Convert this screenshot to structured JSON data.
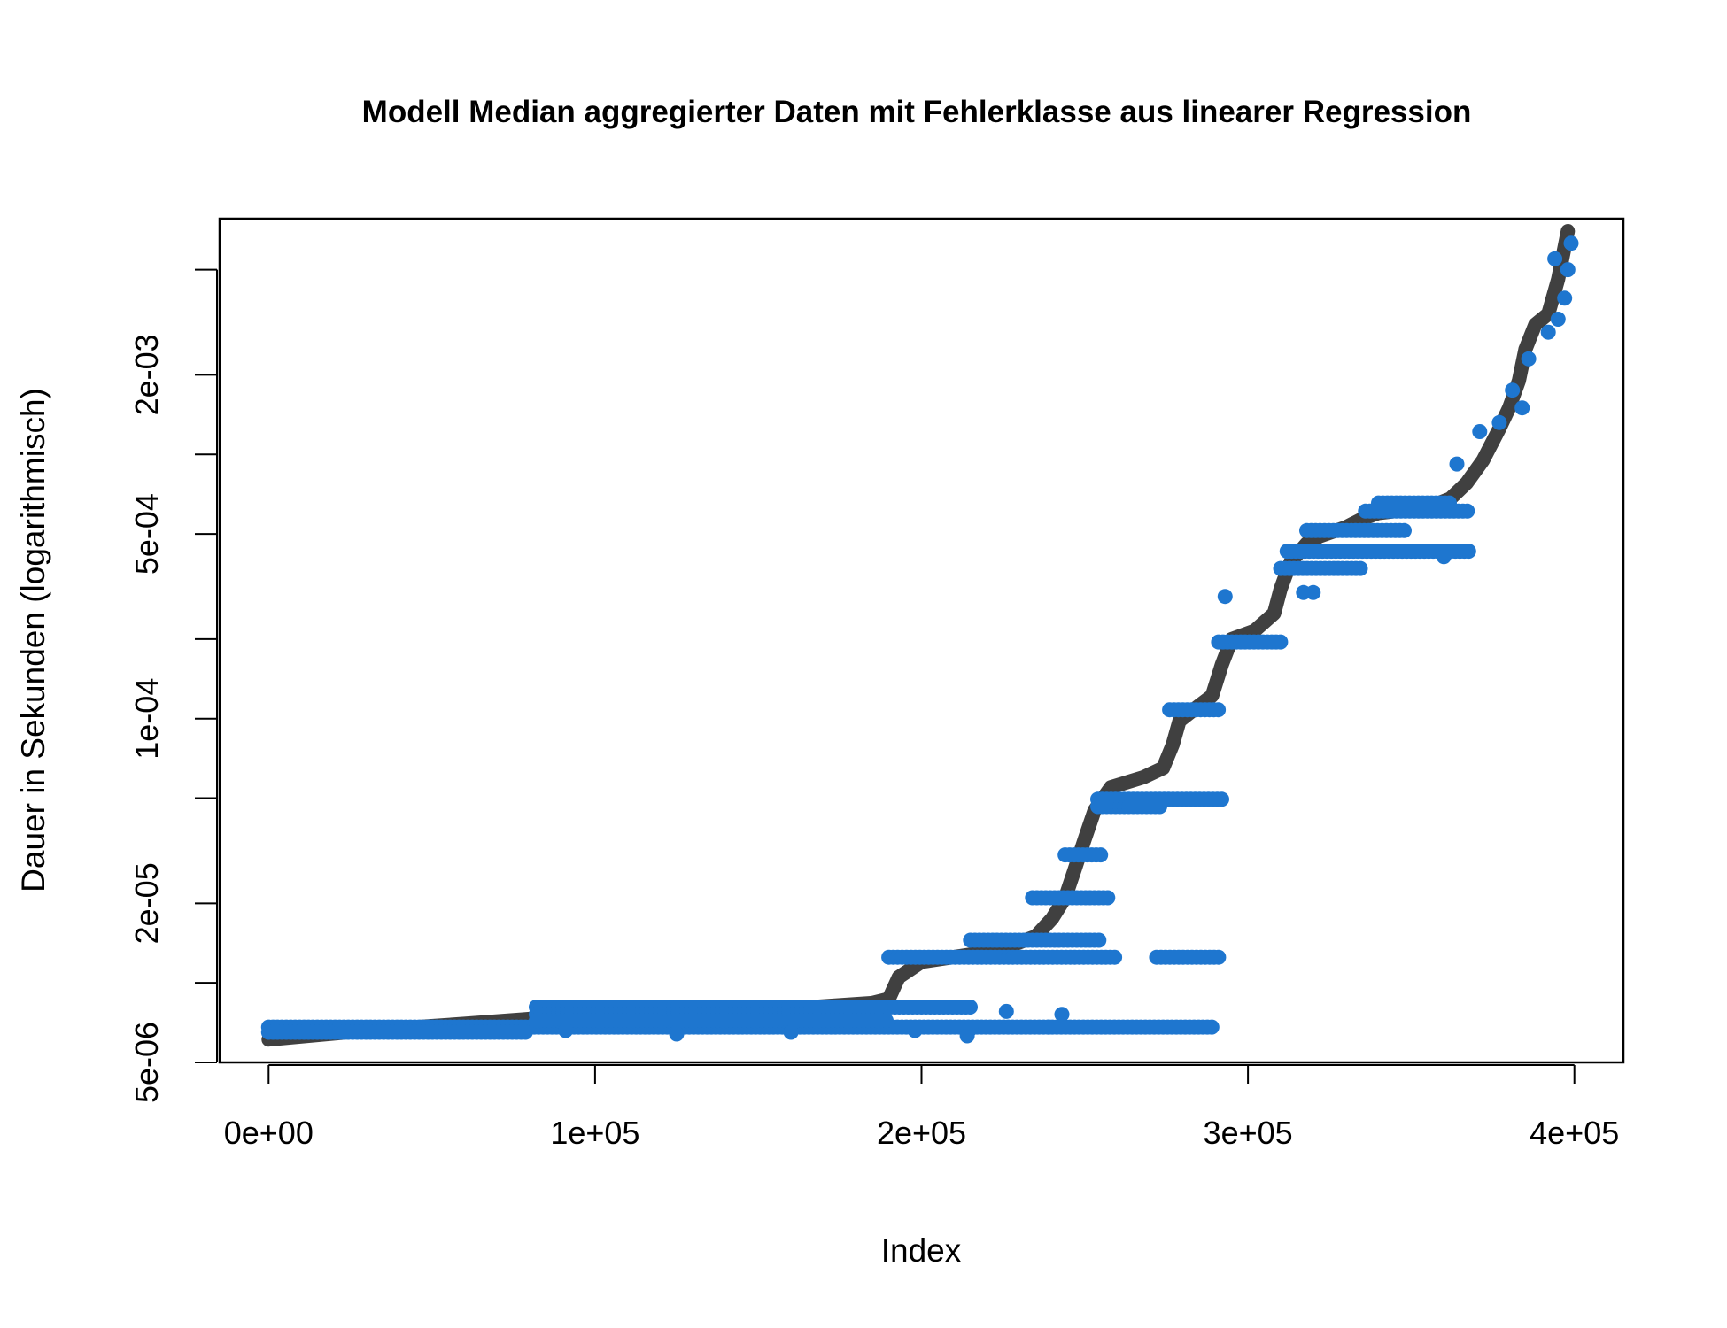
{
  "chart_data": {
    "type": "scatter",
    "title": "Modell  Median aggregierter Daten mit Fehlerklasse aus linearer Regression",
    "xlabel": "Index",
    "ylabel": "Dauer in Sekunden (logarithmisch)",
    "xlim": [
      -15000,
      415000
    ],
    "ylim": [
      5e-06,
      0.0078
    ],
    "y_scale": "log",
    "grid": false,
    "legend": "none",
    "x_ticks": [
      0,
      100000,
      200000,
      300000,
      400000
    ],
    "x_tick_labels": [
      "0e+00",
      "1e+05",
      "2e+05",
      "3e+05",
      "4e+05"
    ],
    "y_ticks": [
      5e-06,
      1e-05,
      2e-05,
      5e-05,
      0.0001,
      0.0002,
      0.0005,
      0.001,
      0.002,
      0.005
    ],
    "y_tick_labels": [
      "5e-06",
      "",
      "2e-05",
      "",
      "1e-04",
      "",
      "5e-04",
      "",
      "2e-03",
      ""
    ],
    "colors": {
      "series_1": "#404040",
      "series_2": "#1e76cf"
    },
    "series": [
      {
        "style": "thick-line",
        "color": "#404040",
        "points": [
          [
            0,
            6.1e-06
          ],
          [
            30000,
            6.6e-06
          ],
          [
            60000,
            7e-06
          ],
          [
            80000,
            7.3e-06
          ],
          [
            120000,
            7.7e-06
          ],
          [
            160000,
            8e-06
          ],
          [
            185000,
            8.4e-06
          ],
          [
            190000,
            8.7e-06
          ],
          [
            193000,
            1.05e-05
          ],
          [
            200000,
            1.2e-05
          ],
          [
            215000,
            1.28e-05
          ],
          [
            225000,
            1.35e-05
          ],
          [
            235000,
            1.5e-05
          ],
          [
            240000,
            1.75e-05
          ],
          [
            244000,
            2.1e-05
          ],
          [
            247000,
            2.7e-05
          ],
          [
            250000,
            3.5e-05
          ],
          [
            253000,
            4.5e-05
          ],
          [
            258000,
            5.5e-05
          ],
          [
            268000,
            6e-05
          ],
          [
            274000,
            6.5e-05
          ],
          [
            277000,
            8e-05
          ],
          [
            279000,
            9.8e-05
          ],
          [
            285000,
            0.000112
          ],
          [
            289000,
            0.000122
          ],
          [
            292000,
            0.00016
          ],
          [
            295000,
            0.0002
          ],
          [
            302000,
            0.000215
          ],
          [
            308000,
            0.00025
          ],
          [
            310000,
            0.00031
          ],
          [
            313000,
            0.00039
          ],
          [
            318000,
            0.00046
          ],
          [
            322000,
            0.00049
          ],
          [
            330000,
            0.00053
          ],
          [
            335000,
            0.00057
          ],
          [
            340000,
            0.0006
          ],
          [
            355000,
            0.00063
          ],
          [
            362000,
            0.00068
          ],
          [
            367000,
            0.00078
          ],
          [
            372000,
            0.00095
          ],
          [
            377000,
            0.00125
          ],
          [
            380000,
            0.0015
          ],
          [
            383000,
            0.0019
          ],
          [
            385000,
            0.0025
          ],
          [
            388000,
            0.0031
          ],
          [
            392000,
            0.0034
          ],
          [
            395000,
            0.0046
          ],
          [
            398000,
            0.007
          ]
        ]
      },
      {
        "style": "points",
        "color": "#1e76cf",
        "bands": [
          [
            0,
            290000,
            6.8e-06
          ],
          [
            0,
            80000,
            6.5e-06
          ],
          [
            82000,
            215000,
            8.1e-06
          ],
          [
            82000,
            165000,
            7.6e-06
          ],
          [
            82000,
            190000,
            7.2e-06
          ],
          [
            190000,
            260000,
            1.25e-05
          ],
          [
            272000,
            292000,
            1.25e-05
          ],
          [
            215000,
            255000,
            1.45e-05
          ],
          [
            234000,
            258000,
            2.1e-05
          ],
          [
            244000,
            256000,
            3.05e-05
          ],
          [
            254000,
            292000,
            4.95e-05
          ],
          [
            254000,
            273000,
            4.65e-05
          ],
          [
            276000,
            291000,
            0.000108
          ],
          [
            291000,
            310000,
            0.000195
          ],
          [
            310000,
            335000,
            0.00037
          ],
          [
            312000,
            368000,
            0.00043
          ],
          [
            318000,
            348000,
            0.000515
          ],
          [
            336000,
            368000,
            0.00061
          ],
          [
            340000,
            362000,
            0.000655
          ]
        ],
        "scatter": [
          [
            91000,
            6.6e-06
          ],
          [
            125000,
            6.4e-06
          ],
          [
            160000,
            6.5e-06
          ],
          [
            198000,
            6.6e-06
          ],
          [
            215000,
            6.7e-06
          ],
          [
            214000,
            6.3e-06
          ],
          [
            226000,
            7.8e-06
          ],
          [
            243000,
            7.6e-06
          ],
          [
            239000,
            6.8e-06
          ],
          [
            293000,
            0.00029
          ],
          [
            317000,
            0.0003
          ],
          [
            320000,
            0.0003
          ],
          [
            360000,
            0.00041
          ],
          [
            364000,
            0.00092
          ],
          [
            371000,
            0.00122
          ],
          [
            377000,
            0.00132
          ],
          [
            384000,
            0.0015
          ],
          [
            392000,
            0.0029
          ],
          [
            395000,
            0.00325
          ],
          [
            397000,
            0.0039
          ],
          [
            398000,
            0.005
          ],
          [
            399000,
            0.0063
          ],
          [
            394000,
            0.0055
          ],
          [
            386000,
            0.0023
          ],
          [
            381000,
            0.00175
          ]
        ]
      }
    ]
  }
}
